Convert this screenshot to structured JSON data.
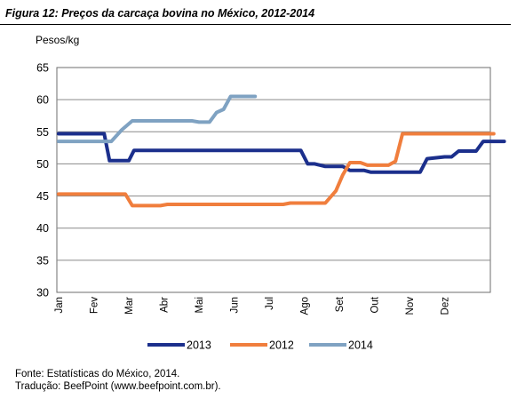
{
  "figure": {
    "title": "Figura 12: Preços da carcaça bovina no México, 2012-2014",
    "source": "Fonte: Estatísticas do México, 2014.",
    "translation": "Tradução: BeefPoint (www.beefpoint.com.br)."
  },
  "chart_data": {
    "type": "line",
    "title": "Figura 12: Preços da carcaça bovina no México, 2012-2014",
    "ylabel": "Pesos/kg",
    "xlabel": "",
    "ylim": [
      30,
      65
    ],
    "yticks": [
      30,
      35,
      40,
      45,
      50,
      55,
      60,
      65
    ],
    "xlim": [
      0,
      12
    ],
    "month_labels": [
      "Jan",
      "Fev",
      "Mar",
      "Abr",
      "Mai",
      "Jun",
      "Jul",
      "Ago",
      "Set",
      "Out",
      "Nov",
      "Dez"
    ],
    "grid": "horizontal",
    "legend": "bottom-center",
    "series": [
      {
        "name": "2013",
        "color": "#1b2f8c",
        "points": [
          [
            0,
            54.7
          ],
          [
            1.3,
            54.7
          ],
          [
            1.45,
            50.5
          ],
          [
            2.0,
            50.5
          ],
          [
            2.15,
            52.1
          ],
          [
            5.0,
            52.1
          ],
          [
            6.0,
            52.1
          ],
          [
            6.9,
            52.1
          ],
          [
            7.1,
            50.0
          ],
          [
            7.3,
            50.0
          ],
          [
            7.6,
            49.6
          ],
          [
            8.1,
            49.6
          ],
          [
            8.3,
            49.0
          ],
          [
            8.7,
            49.0
          ],
          [
            8.9,
            48.7
          ],
          [
            9.8,
            48.7
          ],
          [
            10.3,
            48.7
          ],
          [
            10.5,
            50.8
          ],
          [
            11.0,
            51.1
          ],
          [
            11.2,
            51.1
          ],
          [
            11.4,
            52.0
          ],
          [
            11.9,
            52.0
          ],
          [
            12.1,
            53.5
          ],
          [
            12.7,
            53.5
          ]
        ]
      },
      {
        "name": "2012",
        "color": "#f07e3d",
        "points": [
          [
            0,
            45.3
          ],
          [
            1.9,
            45.3
          ],
          [
            2.1,
            43.5
          ],
          [
            2.9,
            43.5
          ],
          [
            3.1,
            43.7
          ],
          [
            6.4,
            43.7
          ],
          [
            6.6,
            43.9
          ],
          [
            7.6,
            43.9
          ],
          [
            7.9,
            45.8
          ],
          [
            8.1,
            48.3
          ],
          [
            8.3,
            50.2
          ],
          [
            8.6,
            50.2
          ],
          [
            8.8,
            49.8
          ],
          [
            9.4,
            49.8
          ],
          [
            9.6,
            50.4
          ],
          [
            9.8,
            54.7
          ],
          [
            10.2,
            54.7
          ],
          [
            12.4,
            54.7
          ]
        ]
      },
      {
        "name": "2014",
        "color": "#7fa2c2",
        "points": [
          [
            0,
            53.5
          ],
          [
            1.5,
            53.5
          ],
          [
            1.8,
            55.3
          ],
          [
            2.1,
            56.7
          ],
          [
            3.8,
            56.7
          ],
          [
            4.0,
            56.5
          ],
          [
            4.3,
            56.5
          ],
          [
            4.5,
            58.0
          ],
          [
            4.7,
            58.5
          ],
          [
            4.9,
            60.5
          ],
          [
            5.6,
            60.5
          ]
        ]
      }
    ]
  }
}
